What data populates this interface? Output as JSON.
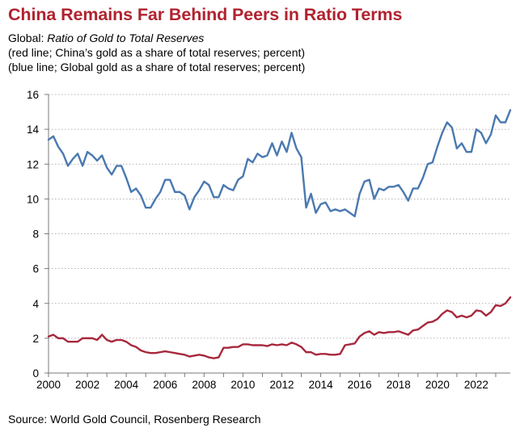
{
  "title": "China Remains Far Behind Peers in Ratio Terms",
  "subtitle": {
    "prefix": "Global: ",
    "italic": "Ratio of Gold to Total Reserves",
    "line2": "(red line; China’s gold as a share of total reserves; percent)",
    "line3": "(blue line; Global gold as a share of total reserves; percent)"
  },
  "source": "Source: World Gold Council, Rosenberg Research",
  "chart_data": {
    "type": "line",
    "x_label": "",
    "y_label": "",
    "xlim": [
      2000,
      2023.75
    ],
    "ylim": [
      0,
      16
    ],
    "y_ticks": [
      0,
      2,
      4,
      6,
      8,
      10,
      12,
      14,
      16
    ],
    "x_ticks": [
      2000,
      2002,
      2004,
      2006,
      2008,
      2010,
      2012,
      2014,
      2016,
      2018,
      2020,
      2022
    ],
    "grid": "horizontal dotted",
    "legend": "none",
    "series": [
      {
        "color": "#4a79b0",
        "points": [
          [
            2000.0,
            13.4
          ],
          [
            2000.25,
            13.6
          ],
          [
            2000.5,
            13.0
          ],
          [
            2000.75,
            12.6
          ],
          [
            2001.0,
            11.9
          ],
          [
            2001.25,
            12.3
          ],
          [
            2001.5,
            12.6
          ],
          [
            2001.75,
            11.9
          ],
          [
            2002.0,
            12.7
          ],
          [
            2002.25,
            12.5
          ],
          [
            2002.5,
            12.2
          ],
          [
            2002.75,
            12.5
          ],
          [
            2003.0,
            11.8
          ],
          [
            2003.25,
            11.4
          ],
          [
            2003.5,
            11.9
          ],
          [
            2003.75,
            11.9
          ],
          [
            2004.0,
            11.2
          ],
          [
            2004.25,
            10.4
          ],
          [
            2004.5,
            10.6
          ],
          [
            2004.75,
            10.2
          ],
          [
            2005.0,
            9.5
          ],
          [
            2005.25,
            9.5
          ],
          [
            2005.5,
            10.0
          ],
          [
            2005.75,
            10.4
          ],
          [
            2006.0,
            11.1
          ],
          [
            2006.25,
            11.1
          ],
          [
            2006.5,
            10.4
          ],
          [
            2006.75,
            10.4
          ],
          [
            2007.0,
            10.2
          ],
          [
            2007.25,
            9.4
          ],
          [
            2007.5,
            10.1
          ],
          [
            2007.75,
            10.5
          ],
          [
            2008.0,
            11.0
          ],
          [
            2008.25,
            10.8
          ],
          [
            2008.5,
            10.1
          ],
          [
            2008.75,
            10.1
          ],
          [
            2009.0,
            10.8
          ],
          [
            2009.25,
            10.6
          ],
          [
            2009.5,
            10.5
          ],
          [
            2009.75,
            11.1
          ],
          [
            2010.0,
            11.3
          ],
          [
            2010.25,
            12.3
          ],
          [
            2010.5,
            12.1
          ],
          [
            2010.75,
            12.6
          ],
          [
            2011.0,
            12.4
          ],
          [
            2011.25,
            12.5
          ],
          [
            2011.5,
            13.2
          ],
          [
            2011.75,
            12.5
          ],
          [
            2012.0,
            13.3
          ],
          [
            2012.25,
            12.7
          ],
          [
            2012.5,
            13.8
          ],
          [
            2012.75,
            12.9
          ],
          [
            2013.0,
            12.4
          ],
          [
            2013.25,
            9.5
          ],
          [
            2013.5,
            10.3
          ],
          [
            2013.75,
            9.2
          ],
          [
            2014.0,
            9.7
          ],
          [
            2014.25,
            9.8
          ],
          [
            2014.5,
            9.3
          ],
          [
            2014.75,
            9.4
          ],
          [
            2015.0,
            9.3
          ],
          [
            2015.25,
            9.4
          ],
          [
            2015.5,
            9.2
          ],
          [
            2015.75,
            9.0
          ],
          [
            2016.0,
            10.3
          ],
          [
            2016.25,
            11.0
          ],
          [
            2016.5,
            11.1
          ],
          [
            2016.75,
            10.0
          ],
          [
            2017.0,
            10.6
          ],
          [
            2017.25,
            10.5
          ],
          [
            2017.5,
            10.7
          ],
          [
            2017.75,
            10.7
          ],
          [
            2018.0,
            10.8
          ],
          [
            2018.25,
            10.4
          ],
          [
            2018.5,
            9.9
          ],
          [
            2018.75,
            10.6
          ],
          [
            2019.0,
            10.6
          ],
          [
            2019.25,
            11.2
          ],
          [
            2019.5,
            12.0
          ],
          [
            2019.75,
            12.1
          ],
          [
            2020.0,
            13.0
          ],
          [
            2020.25,
            13.8
          ],
          [
            2020.5,
            14.4
          ],
          [
            2020.75,
            14.1
          ],
          [
            2021.0,
            12.9
          ],
          [
            2021.25,
            13.2
          ],
          [
            2021.5,
            12.7
          ],
          [
            2021.75,
            12.7
          ],
          [
            2022.0,
            14.0
          ],
          [
            2022.25,
            13.8
          ],
          [
            2022.5,
            13.2
          ],
          [
            2022.75,
            13.7
          ],
          [
            2023.0,
            14.8
          ],
          [
            2023.25,
            14.4
          ],
          [
            2023.5,
            14.4
          ],
          [
            2023.75,
            15.1
          ]
        ]
      },
      {
        "color": "#a8283c",
        "points": [
          [
            2000.0,
            2.1
          ],
          [
            2000.25,
            2.2
          ],
          [
            2000.5,
            2.0
          ],
          [
            2000.75,
            2.0
          ],
          [
            2001.0,
            1.8
          ],
          [
            2001.25,
            1.8
          ],
          [
            2001.5,
            1.8
          ],
          [
            2001.75,
            2.0
          ],
          [
            2002.0,
            2.0
          ],
          [
            2002.25,
            2.0
          ],
          [
            2002.5,
            1.9
          ],
          [
            2002.75,
            2.2
          ],
          [
            2003.0,
            1.9
          ],
          [
            2003.25,
            1.8
          ],
          [
            2003.5,
            1.9
          ],
          [
            2003.75,
            1.9
          ],
          [
            2004.0,
            1.8
          ],
          [
            2004.25,
            1.6
          ],
          [
            2004.5,
            1.5
          ],
          [
            2004.75,
            1.3
          ],
          [
            2005.0,
            1.2
          ],
          [
            2005.25,
            1.15
          ],
          [
            2005.5,
            1.15
          ],
          [
            2005.75,
            1.2
          ],
          [
            2006.0,
            1.25
          ],
          [
            2006.25,
            1.2
          ],
          [
            2006.5,
            1.15
          ],
          [
            2006.75,
            1.1
          ],
          [
            2007.0,
            1.05
          ],
          [
            2007.25,
            0.95
          ],
          [
            2007.5,
            1.0
          ],
          [
            2007.75,
            1.05
          ],
          [
            2008.0,
            1.0
          ],
          [
            2008.25,
            0.9
          ],
          [
            2008.5,
            0.85
          ],
          [
            2008.75,
            0.9
          ],
          [
            2009.0,
            1.45
          ],
          [
            2009.25,
            1.45
          ],
          [
            2009.5,
            1.5
          ],
          [
            2009.75,
            1.5
          ],
          [
            2010.0,
            1.65
          ],
          [
            2010.25,
            1.65
          ],
          [
            2010.5,
            1.6
          ],
          [
            2010.75,
            1.6
          ],
          [
            2011.0,
            1.6
          ],
          [
            2011.25,
            1.55
          ],
          [
            2011.5,
            1.65
          ],
          [
            2011.75,
            1.6
          ],
          [
            2012.0,
            1.65
          ],
          [
            2012.25,
            1.6
          ],
          [
            2012.5,
            1.75
          ],
          [
            2012.75,
            1.65
          ],
          [
            2013.0,
            1.5
          ],
          [
            2013.25,
            1.2
          ],
          [
            2013.5,
            1.2
          ],
          [
            2013.75,
            1.05
          ],
          [
            2014.0,
            1.1
          ],
          [
            2014.25,
            1.1
          ],
          [
            2014.5,
            1.05
          ],
          [
            2014.75,
            1.05
          ],
          [
            2015.0,
            1.1
          ],
          [
            2015.25,
            1.6
          ],
          [
            2015.5,
            1.65
          ],
          [
            2015.75,
            1.7
          ],
          [
            2016.0,
            2.1
          ],
          [
            2016.25,
            2.3
          ],
          [
            2016.5,
            2.4
          ],
          [
            2016.75,
            2.2
          ],
          [
            2017.0,
            2.35
          ],
          [
            2017.25,
            2.3
          ],
          [
            2017.5,
            2.35
          ],
          [
            2017.75,
            2.35
          ],
          [
            2018.0,
            2.4
          ],
          [
            2018.25,
            2.3
          ],
          [
            2018.5,
            2.2
          ],
          [
            2018.75,
            2.45
          ],
          [
            2019.0,
            2.5
          ],
          [
            2019.25,
            2.7
          ],
          [
            2019.5,
            2.9
          ],
          [
            2019.75,
            2.95
          ],
          [
            2020.0,
            3.1
          ],
          [
            2020.25,
            3.4
          ],
          [
            2020.5,
            3.6
          ],
          [
            2020.75,
            3.5
          ],
          [
            2021.0,
            3.2
          ],
          [
            2021.25,
            3.3
          ],
          [
            2021.5,
            3.2
          ],
          [
            2021.75,
            3.3
          ],
          [
            2022.0,
            3.6
          ],
          [
            2022.25,
            3.55
          ],
          [
            2022.5,
            3.3
          ],
          [
            2022.75,
            3.5
          ],
          [
            2023.0,
            3.9
          ],
          [
            2023.25,
            3.85
          ],
          [
            2023.5,
            4.0
          ],
          [
            2023.75,
            4.35
          ]
        ]
      }
    ]
  }
}
